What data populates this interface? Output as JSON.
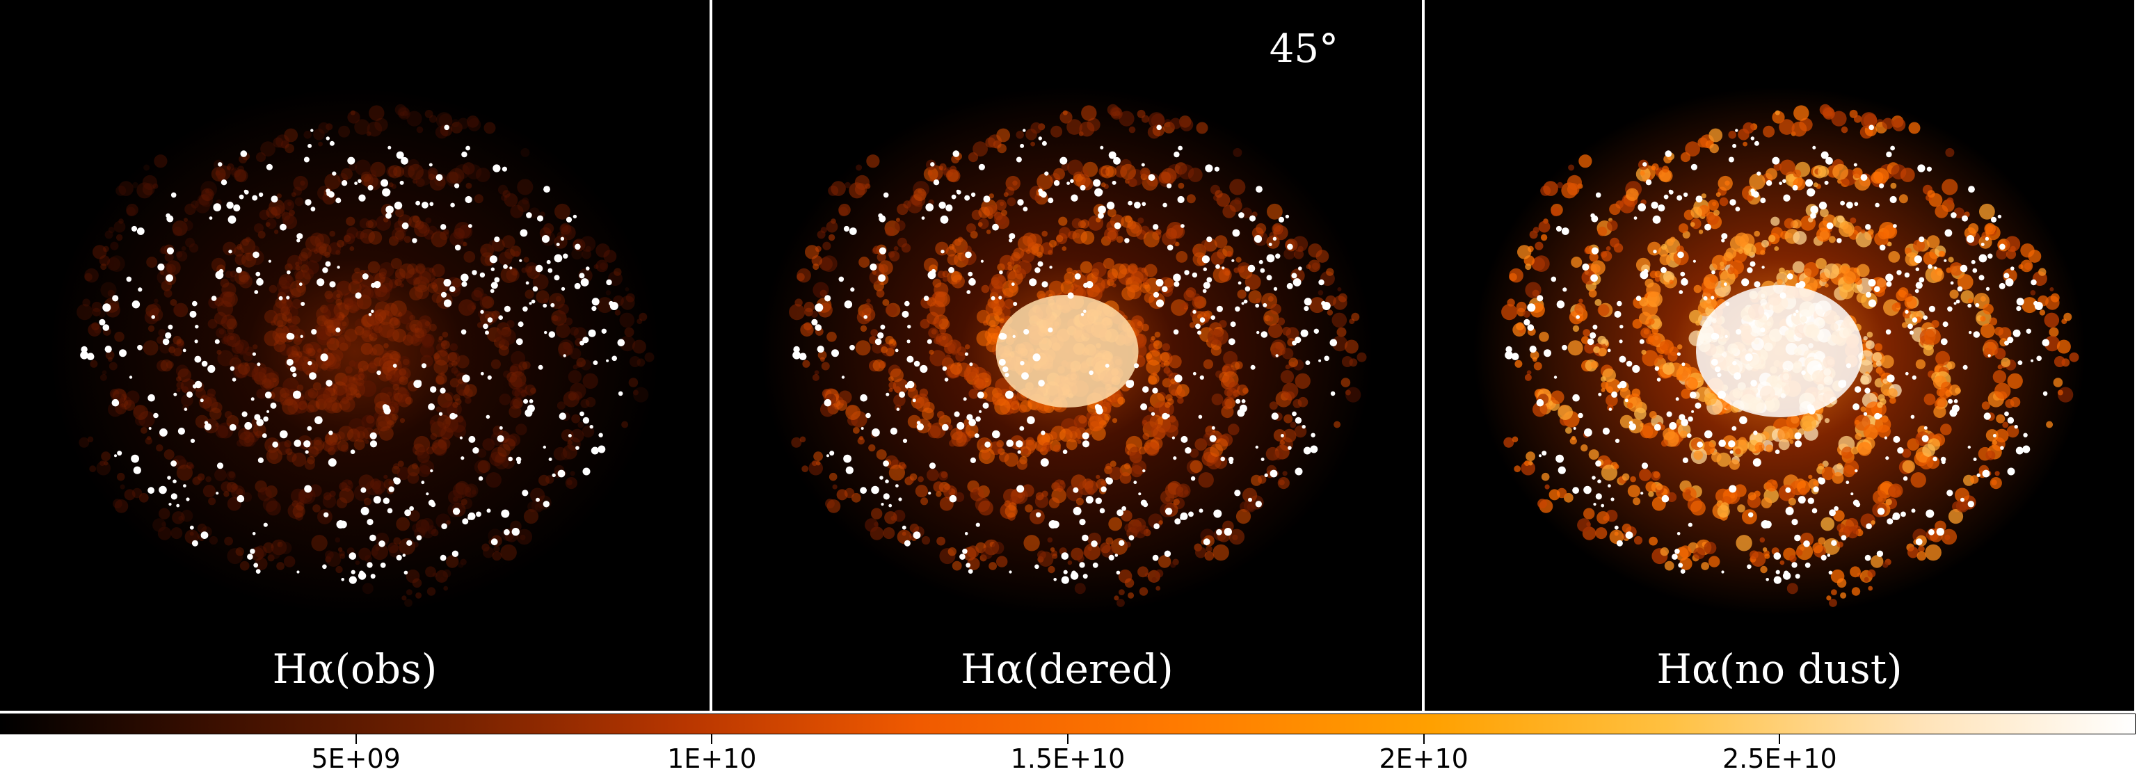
{
  "panels": [
    {
      "label": "Hα(obs)",
      "note": "",
      "intensity": 0.35
    },
    {
      "label": "Hα(dered)",
      "note": "45°",
      "intensity": 0.65
    },
    {
      "label": "Hα(no dust)",
      "note": "",
      "intensity": 1.0
    }
  ],
  "colorbar": {
    "ticks": [
      "5E+09",
      "1E+10",
      "1.5E+10",
      "2E+10",
      "2.5E+10"
    ],
    "tick_values": [
      5000000000.0,
      10000000000.0,
      15000000000.0,
      20000000000.0,
      25000000000.0
    ],
    "range": [
      0,
      30000000000.0
    ],
    "colormap": "gist_heat"
  },
  "colors": {
    "background": "#000000",
    "separator": "#ffffff",
    "label": "#ffffff"
  }
}
